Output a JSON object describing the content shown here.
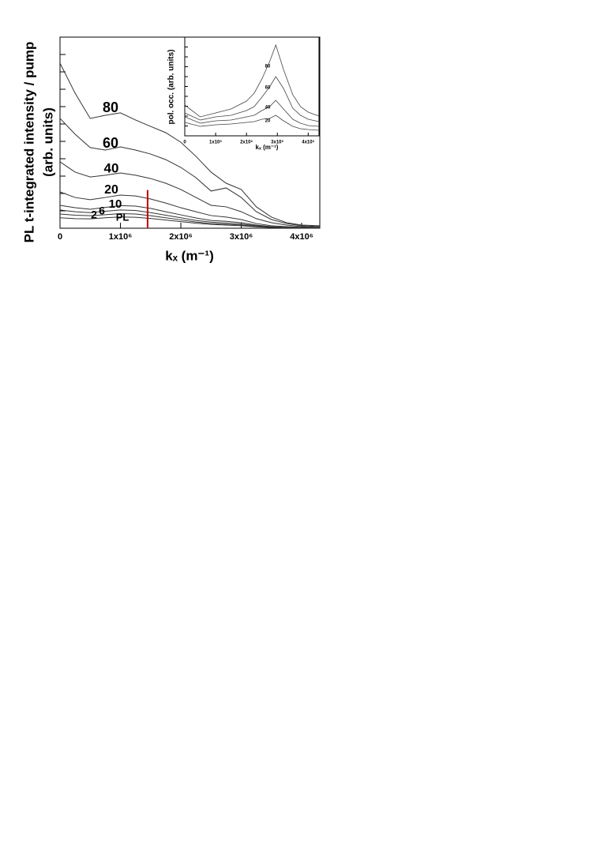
{
  "chart_data": [
    {
      "type": "line",
      "ylabel": [
        "PL t-integrated intensity / pump",
        "(arb. units)"
      ],
      "xlabel": "kₓ (m⁻¹)",
      "x": [
        0,
        250000,
        500000,
        750000,
        1000000,
        1250000,
        1500000,
        1750000,
        2000000,
        2250000,
        2500000,
        2750000,
        3000000,
        3250000,
        3500000,
        3750000,
        4000000,
        4300000
      ],
      "series": [
        {
          "name": "80",
          "color": "#333333",
          "values": [
            9.5,
            7.77,
            6.32,
            6.5,
            6.64,
            6.23,
            5.86,
            5.5,
            4.95,
            4.14,
            3.23,
            2.59,
            2.23,
            1.23,
            0.64,
            0.32,
            0.18,
            0.14
          ]
        },
        {
          "name": "60",
          "color": "#333333",
          "values": [
            6.32,
            5.41,
            4.64,
            4.5,
            4.68,
            4.5,
            4.27,
            3.95,
            3.5,
            2.91,
            2.14,
            2.32,
            1.77,
            0.95,
            0.5,
            0.27,
            0.14,
            0.09
          ]
        },
        {
          "name": "40",
          "color": "#333333",
          "values": [
            3.82,
            3.23,
            2.95,
            3.05,
            3.18,
            3.05,
            2.86,
            2.59,
            2.23,
            1.77,
            1.32,
            1.23,
            0.95,
            0.55,
            0.32,
            0.18,
            0.09,
            0.05
          ]
        },
        {
          "name": "20",
          "color": "#333333",
          "values": [
            2.09,
            1.77,
            1.64,
            1.77,
            1.91,
            1.86,
            1.68,
            1.45,
            1.18,
            0.95,
            0.73,
            0.64,
            0.5,
            0.27,
            0.14,
            0.09,
            0.05,
            0.02
          ]
        },
        {
          "name": "10",
          "color": "#333333",
          "values": [
            1.32,
            1.18,
            1.09,
            1.2,
            1.3,
            1.27,
            1.14,
            0.95,
            0.77,
            0.59,
            0.45,
            0.4,
            0.32,
            0.18,
            0.09,
            0.05,
            0.03,
            0.02
          ]
        },
        {
          "name": "6",
          "color": "#333333",
          "values": [
            1.05,
            0.95,
            0.9,
            0.98,
            1.05,
            1.02,
            0.9,
            0.75,
            0.6,
            0.45,
            0.35,
            0.3,
            0.24,
            0.14,
            0.07,
            0.04,
            0.02,
            0.01
          ]
        },
        {
          "name": "2",
          "color": "#333333",
          "values": [
            0.82,
            0.75,
            0.72,
            0.78,
            0.84,
            0.82,
            0.72,
            0.6,
            0.48,
            0.36,
            0.27,
            0.23,
            0.18,
            0.1,
            0.05,
            0.03,
            0.02,
            0.01
          ]
        },
        {
          "name": "PL",
          "color": "#333333",
          "values": [
            0.6,
            0.55,
            0.54,
            0.6,
            0.65,
            0.63,
            0.56,
            0.47,
            0.38,
            0.29,
            0.22,
            0.18,
            0.14,
            0.08,
            0.04,
            0.02,
            0.01,
            0.01
          ]
        }
      ],
      "xlim": [
        0,
        4300000
      ],
      "xticks": [
        0,
        {
          "value": 1000000,
          "label": "1x10⁶"
        },
        {
          "value": 2000000,
          "label": "2x10⁶"
        },
        {
          "value": 3000000,
          "label": "3x10⁶"
        },
        {
          "value": 4000000,
          "label": "4x10⁶"
        }
      ],
      "ylim": [
        0,
        11
      ],
      "yticks": [
        1,
        2,
        3,
        4,
        5,
        6,
        7,
        8,
        9,
        10
      ],
      "vline": {
        "x": 1450000,
        "ymax": 2.2,
        "color": "#c00000"
      }
    },
    {
      "type": "line",
      "ylabel": [
        "pol. occ. (arb. units)"
      ],
      "xlabel": "kₓ (m⁻¹)",
      "x": [
        0,
        500000,
        1000000,
        1500000,
        2000000,
        2250000,
        2500000,
        2750000,
        2950000,
        3200000,
        3500000,
        3750000,
        4000000,
        4350000
      ],
      "series": [
        {
          "name": "80",
          "color": "#444444",
          "values": [
            3.12,
            1.92,
            2.32,
            2.72,
            3.52,
            4.32,
            5.76,
            7.52,
            9.2,
            6.72,
            4.16,
            2.96,
            2.4,
            2.0
          ]
        },
        {
          "name": "60",
          "color": "#444444",
          "values": [
            2.32,
            1.6,
            1.92,
            2.08,
            2.56,
            2.96,
            3.92,
            4.96,
            6.0,
            4.8,
            2.8,
            2.08,
            1.68,
            1.44
          ]
        },
        {
          "name": "40",
          "color": "#444444",
          "values": [
            1.92,
            1.28,
            1.52,
            1.6,
            1.92,
            2.08,
            2.56,
            2.96,
            3.6,
            2.72,
            1.68,
            1.28,
            1.04,
            0.96
          ]
        },
        {
          "name": "20",
          "color": "#444444",
          "values": [
            1.36,
            0.96,
            1.12,
            1.2,
            1.36,
            1.44,
            1.68,
            1.76,
            2.08,
            1.52,
            0.96,
            0.72,
            0.64,
            0.56
          ]
        }
      ],
      "xlim": [
        0,
        4350000
      ],
      "xticks": [
        0,
        {
          "value": 1000000,
          "label": "1x10⁶"
        },
        {
          "value": 2000000,
          "label": "2x10⁶"
        },
        {
          "value": 3000000,
          "label": "3x10⁶"
        },
        {
          "value": 4000000,
          "label": "4x10⁶"
        }
      ],
      "ylim": [
        0,
        10
      ],
      "yticks": [
        1,
        2,
        3,
        4,
        5,
        6,
        7,
        8,
        9
      ]
    }
  ]
}
